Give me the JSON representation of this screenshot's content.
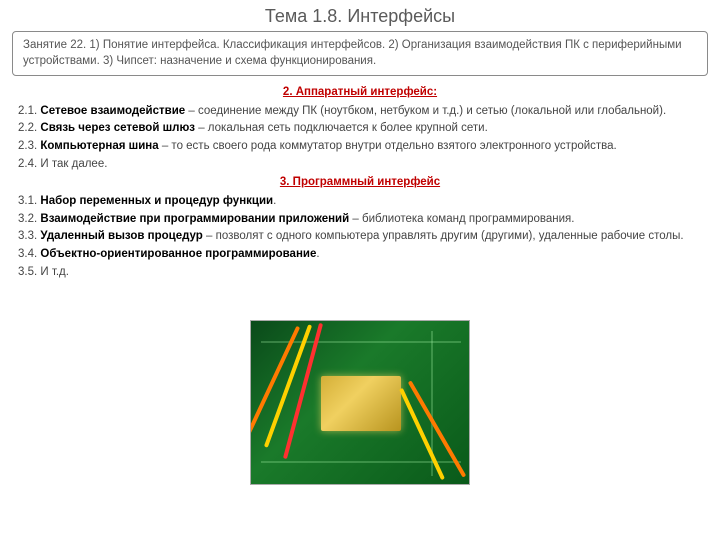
{
  "title": "Тема 1.8. Интерфейсы",
  "lesson": {
    "prefix": "Занятие 22. ",
    "p1_num": "1) ",
    "p1": "Понятие интерфейса. Классификация интерфейсов. ",
    "p2_num": "2) ",
    "p2": "Организация взаимодействия ПК с периферийными устройствами. ",
    "p3_num": "3) ",
    "p3": "Чипсет: назначение и схема функционирования."
  },
  "section2": {
    "heading": "2. Аппаратный интерфейс:",
    "items": [
      {
        "num": "2.1. ",
        "term": "Сетевое взаимодействие",
        "rest": " – соединение между ПК (ноутбком, нетбуком и т.д.) и сетью (локальной или глобальной)."
      },
      {
        "num": "2.2. ",
        "term": "Связь через сетевой шлюз",
        "rest": " – локальная сеть подключается к более крупной сети."
      },
      {
        "num": "2.3. ",
        "term": "Компьютерная шина",
        "rest": " – то есть своего рода коммутатор внутри отдельно взятого электронного устройства."
      },
      {
        "num": "2.4. ",
        "term": "",
        "rest": "И так далее."
      }
    ]
  },
  "section3": {
    "heading": "3. Программный интерфейс",
    "items": [
      {
        "num": "3.1. ",
        "term": "Набор переменных и процедур функции",
        "rest": "."
      },
      {
        "num": "3.2. ",
        "term": "Взаимодействие при программировании приложений",
        "rest": " – библиотека команд программирования."
      },
      {
        "num": "3.3. ",
        "term": "Удаленный вызов процедур",
        "rest": " – позволят с одного компьютера управлять другим (другими), удаленные рабочие столы."
      },
      {
        "num": "3.4. ",
        "term": "Объектно-ориентированное программирование",
        "rest": "."
      },
      {
        "num": "3.5. ",
        "term": "",
        "rest": "И т.д."
      }
    ]
  },
  "image_alt": "circuit-board-with-chip"
}
